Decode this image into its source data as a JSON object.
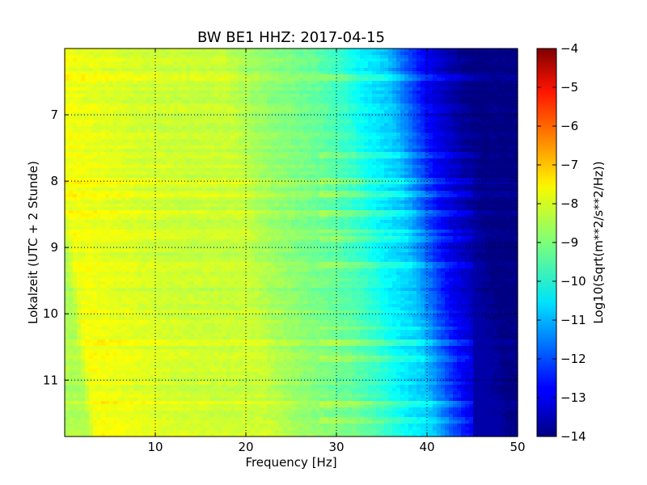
{
  "chart_data": {
    "type": "heatmap",
    "title": "BW BE1 HHZ: 2017-04-15",
    "xlabel": "Frequency [Hz]",
    "ylabel": "Lokalzeit (UTC + 2 Stunde)",
    "xlim": [
      0,
      50
    ],
    "ylim": [
      6.0,
      11.85
    ],
    "y_inverted": true,
    "grid": true,
    "x_ticks": [
      10,
      20,
      30,
      40,
      50
    ],
    "x_tick_labels": [
      "10",
      "20",
      "30",
      "40",
      "50"
    ],
    "y_ticks": [
      7,
      8,
      9,
      10,
      11
    ],
    "y_tick_labels": [
      "7",
      "8",
      "9",
      "10",
      "11"
    ],
    "colorbar": {
      "label": "Log10(Sqrt(m**2/s**2/Hz))",
      "range": [
        -14,
        -4
      ],
      "ticks": [
        -4,
        -5,
        -6,
        -7,
        -8,
        -9,
        -10,
        -11,
        -12,
        -13,
        -14
      ],
      "tick_labels": [
        "−4",
        "−5",
        "−6",
        "−7",
        "−8",
        "−9",
        "−10",
        "−11",
        "−12",
        "−13",
        "−14"
      ],
      "colormap": "jet"
    },
    "spectral_profile": {
      "frequency_hz": [
        0,
        1,
        2,
        5,
        10,
        15,
        20,
        22,
        25,
        30,
        33,
        35,
        38,
        40,
        42,
        45,
        47,
        50
      ],
      "log10_amplitude": [
        -8.6,
        -7.9,
        -7.9,
        -8.0,
        -8.2,
        -8.3,
        -8.3,
        -8.6,
        -8.9,
        -9.3,
        -9.8,
        -10.3,
        -10.8,
        -11.8,
        -12.8,
        -13.6,
        -14.0,
        -14.0
      ]
    },
    "noise_bands_local_time": [
      6.45,
      7.6,
      7.98,
      8.2,
      8.5,
      8.75,
      8.88,
      9.28,
      10.22,
      10.45,
      10.67,
      11.35,
      11.6
    ]
  }
}
